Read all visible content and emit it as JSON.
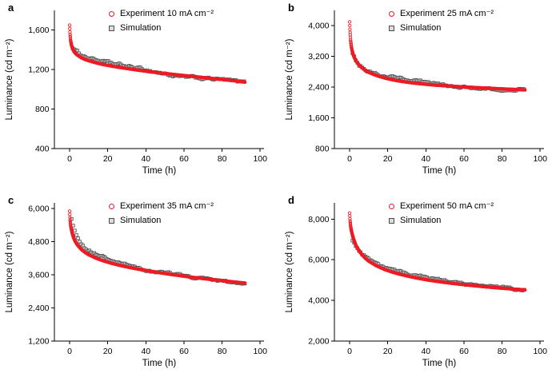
{
  "figure": {
    "background": "#ffffff",
    "colors": {
      "experiment": "#ee1b24",
      "simulation_stroke": "#4d4d4d",
      "simulation_fill": "#d9d9d9",
      "axis": "#000000"
    }
  },
  "chart_data": [
    {
      "panel": "a",
      "type": "scatter",
      "xlabel": "Time (h)",
      "ylabel": "Luminance (cd m⁻²)",
      "xlim": [
        -8,
        102
      ],
      "ylim": [
        400,
        1800
      ],
      "xticks": [
        0,
        20,
        40,
        60,
        80,
        100
      ],
      "xtick_labels": [
        "0",
        "20",
        "40",
        "60",
        "80",
        "100"
      ],
      "yticks": [
        400,
        800,
        1200,
        1600
      ],
      "ytick_labels": [
        "400",
        "800",
        "1,200",
        "1,600"
      ],
      "legend": [
        {
          "label": "Experiment 10 mA cm⁻²",
          "marker": "circle",
          "color": "#ee1b24"
        },
        {
          "label": "Simulation",
          "marker": "square",
          "color": "#4d4d4d"
        }
      ],
      "series": [
        {
          "name": "Simulation",
          "marker": "square",
          "color": "#4d4d4d",
          "fill": "#d9d9d9",
          "x": [
            1.5,
            3,
            5,
            8,
            12,
            16,
            20,
            25,
            30,
            35,
            40,
            45,
            50,
            55,
            60,
            65,
            70,
            75,
            80,
            85,
            90,
            92
          ],
          "y": [
            1430,
            1392,
            1362,
            1336,
            1310,
            1288,
            1268,
            1248,
            1232,
            1214,
            1196,
            1178,
            1158,
            1136,
            1122,
            1117,
            1112,
            1107,
            1098,
            1085,
            1072,
            1068
          ]
        },
        {
          "name": "Experiment 10 mA cm⁻²",
          "marker": "circle",
          "color": "#ee1b24",
          "x": [
            0,
            0.2,
            0.5,
            1,
            1.5,
            2,
            3,
            4,
            6,
            8,
            10,
            14,
            18,
            22,
            26,
            30,
            35,
            40,
            45,
            50,
            55,
            60,
            65,
            70,
            75,
            80,
            85,
            90,
            92
          ],
          "y": [
            1650,
            1565,
            1495,
            1445,
            1415,
            1393,
            1366,
            1348,
            1322,
            1304,
            1290,
            1268,
            1250,
            1236,
            1223,
            1211,
            1197,
            1184,
            1172,
            1161,
            1150,
            1140,
            1130,
            1120,
            1110,
            1100,
            1090,
            1078,
            1073
          ]
        }
      ]
    },
    {
      "panel": "b",
      "type": "scatter",
      "xlabel": "Time (h)",
      "ylabel": "Luminance (cd m⁻²)",
      "xlim": [
        -8,
        102
      ],
      "ylim": [
        800,
        4400
      ],
      "xticks": [
        0,
        20,
        40,
        60,
        80,
        100
      ],
      "xtick_labels": [
        "0",
        "20",
        "40",
        "60",
        "80",
        "100"
      ],
      "yticks": [
        800,
        1600,
        2400,
        3200,
        4000
      ],
      "ytick_labels": [
        "800",
        "1,600",
        "2,400",
        "3,200",
        "4,000"
      ],
      "legend": [
        {
          "label": "Experiment 25 mA cm⁻²",
          "marker": "circle",
          "color": "#ee1b24"
        },
        {
          "label": "Simulation",
          "marker": "square",
          "color": "#4d4d4d"
        }
      ],
      "series": [
        {
          "name": "Simulation",
          "marker": "square",
          "color": "#4d4d4d",
          "fill": "#d9d9d9",
          "x": [
            1.5,
            3,
            5,
            8,
            12,
            16,
            20,
            24,
            28,
            32,
            36,
            40,
            45,
            50,
            55,
            60,
            65,
            70,
            75,
            80,
            85,
            90,
            92
          ],
          "y": [
            3310,
            3140,
            2990,
            2870,
            2770,
            2710,
            2685,
            2655,
            2620,
            2585,
            2545,
            2505,
            2472,
            2450,
            2428,
            2400,
            2372,
            2352,
            2338,
            2312,
            2292,
            2355,
            2365
          ]
        },
        {
          "name": "Experiment 25 mA cm⁻²",
          "marker": "circle",
          "color": "#ee1b24",
          "x": [
            0,
            0.2,
            0.5,
            1,
            1.5,
            2,
            3,
            4,
            6,
            8,
            10,
            14,
            18,
            22,
            26,
            30,
            35,
            40,
            45,
            50,
            55,
            60,
            65,
            70,
            75,
            80,
            85,
            90,
            92
          ],
          "y": [
            4100,
            3860,
            3620,
            3420,
            3310,
            3230,
            3115,
            3035,
            2925,
            2845,
            2785,
            2705,
            2645,
            2597,
            2560,
            2530,
            2500,
            2475,
            2453,
            2436,
            2420,
            2406,
            2392,
            2379,
            2366,
            2355,
            2344,
            2333,
            2328
          ]
        }
      ]
    },
    {
      "panel": "c",
      "type": "scatter",
      "xlabel": "Time (h)",
      "ylabel": "Luminance (cd m⁻²)",
      "xlim": [
        -8,
        102
      ],
      "ylim": [
        1200,
        6200
      ],
      "xticks": [
        0,
        20,
        40,
        60,
        80,
        100
      ],
      "xtick_labels": [
        "0",
        "20",
        "40",
        "60",
        "80",
        "100"
      ],
      "yticks": [
        1200,
        2400,
        3600,
        4800,
        6000
      ],
      "ytick_labels": [
        "1,200",
        "2,400",
        "3,600",
        "4,800",
        "6,000"
      ],
      "legend": [
        {
          "label": "Experiment 35 mA cm⁻²",
          "marker": "circle",
          "color": "#ee1b24"
        },
        {
          "label": "Simulation",
          "marker": "square",
          "color": "#4d4d4d"
        }
      ],
      "series": [
        {
          "name": "Simulation",
          "marker": "square",
          "color": "#4d4d4d",
          "fill": "#d9d9d9",
          "x": [
            1,
            2,
            3.5,
            5,
            8,
            12,
            16,
            20,
            25,
            30,
            35,
            40,
            45,
            50,
            55,
            60,
            65,
            70,
            75,
            80,
            85,
            90,
            92
          ],
          "y": [
            5650,
            5310,
            5060,
            4860,
            4610,
            4430,
            4290,
            4160,
            4030,
            3935,
            3852,
            3780,
            3712,
            3652,
            3598,
            3548,
            3502,
            3460,
            3420,
            3382,
            3345,
            3322,
            3312
          ]
        },
        {
          "name": "Experiment 35 mA cm⁻²",
          "marker": "circle",
          "color": "#ee1b24",
          "x": [
            0,
            0.2,
            0.5,
            1,
            1.5,
            2,
            3,
            4,
            6,
            8,
            10,
            14,
            18,
            22,
            26,
            30,
            35,
            40,
            45,
            50,
            55,
            60,
            65,
            70,
            75,
            80,
            85,
            90,
            92
          ],
          "y": [
            5900,
            5610,
            5390,
            5210,
            5070,
            4955,
            4795,
            4685,
            4525,
            4415,
            4325,
            4195,
            4095,
            4015,
            3945,
            3885,
            3815,
            3755,
            3695,
            3645,
            3595,
            3548,
            3503,
            3462,
            3422,
            3385,
            3348,
            3312,
            3298
          ]
        }
      ]
    },
    {
      "panel": "d",
      "type": "scatter",
      "xlabel": "Time (h)",
      "ylabel": "Luminance (cd m⁻²)",
      "xlim": [
        -8,
        102
      ],
      "ylim": [
        2000,
        8800
      ],
      "xticks": [
        0,
        20,
        40,
        60,
        80,
        100
      ],
      "xtick_labels": [
        "0",
        "20",
        "40",
        "60",
        "80",
        "100"
      ],
      "yticks": [
        2000,
        4000,
        6000,
        8000
      ],
      "ytick_labels": [
        "2,000",
        "4,000",
        "6,000",
        "8,000"
      ],
      "legend": [
        {
          "label": "Experiment 50 mA cm⁻²",
          "marker": "circle",
          "color": "#ee1b24"
        },
        {
          "label": "Simulation",
          "marker": "square",
          "color": "#4d4d4d"
        }
      ],
      "series": [
        {
          "name": "Simulation",
          "marker": "square",
          "color": "#4d4d4d",
          "fill": "#d9d9d9",
          "x": [
            1.5,
            3,
            5,
            8,
            12,
            16,
            20,
            25,
            30,
            35,
            40,
            45,
            50,
            55,
            60,
            65,
            70,
            75,
            80,
            85,
            90,
            92
          ],
          "y": [
            6950,
            6650,
            6400,
            6150,
            5900,
            5705,
            5555,
            5405,
            5292,
            5192,
            5102,
            5022,
            4952,
            4890,
            4832,
            4780,
            4732,
            4690,
            4650,
            4612,
            4572,
            4562
          ]
        },
        {
          "name": "Experiment 50 mA cm⁻²",
          "marker": "circle",
          "color": "#ee1b24",
          "x": [
            0,
            0.2,
            0.5,
            1,
            1.5,
            2,
            3,
            4,
            6,
            8,
            10,
            14,
            18,
            22,
            26,
            30,
            35,
            40,
            45,
            50,
            55,
            60,
            65,
            70,
            75,
            80,
            85,
            90,
            92
          ],
          "y": [
            8300,
            7950,
            7660,
            7400,
            7205,
            7045,
            6785,
            6585,
            6305,
            6095,
            5935,
            5705,
            5535,
            5405,
            5298,
            5208,
            5108,
            5022,
            4950,
            4886,
            4828,
            4776,
            4727,
            4682,
            4640,
            4601,
            4565,
            4531,
            4518
          ]
        }
      ]
    }
  ]
}
